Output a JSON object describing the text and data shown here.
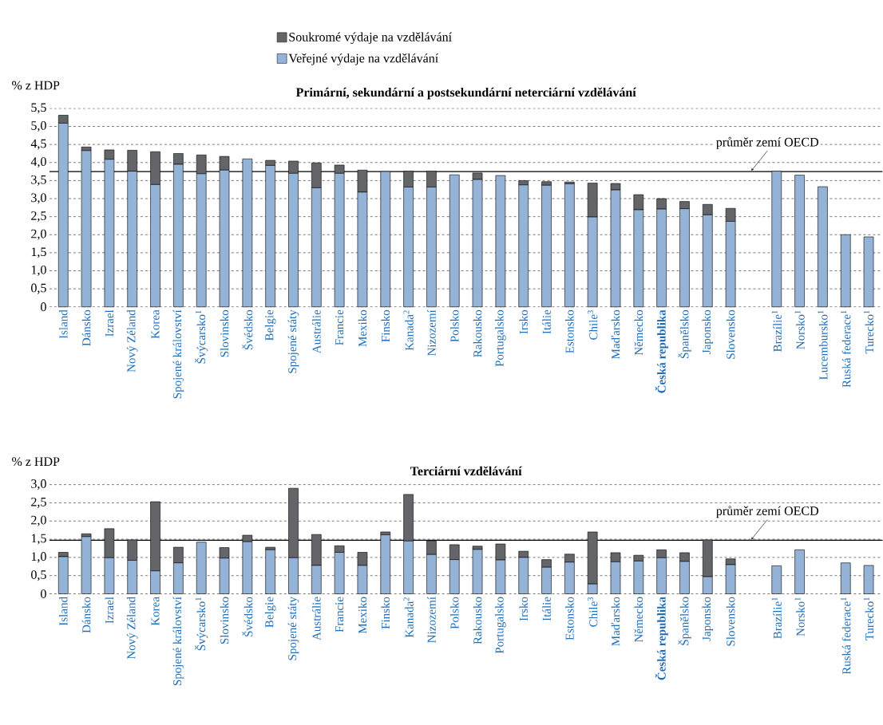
{
  "chart_data": [
    {
      "type": "bar",
      "stacked": true,
      "title": "Primární, sekundární a postsekundární neterciární vzdělávání",
      "ylabel": "% z HDP",
      "legend": "top",
      "grid": "y",
      "categories": [
        "Island",
        "Dánsko",
        "Izrael",
        "Nový Zéland",
        "Korea",
        "Spojené království",
        "Švýcarsko$^{1}$",
        "Slovinsko",
        "Švédsko",
        "Belgie",
        "Spojené státy",
        "Austrálie",
        "Francie",
        "Mexiko",
        "Finsko",
        "Kanada$^{2}$",
        "Nizozemí",
        "Polsko",
        "Rakousko",
        "Portugalsko",
        "Irsko",
        "Itálie",
        "Estonsko",
        "Chile$^{3}$",
        "Maďarsko",
        "Německo",
        "**Česká republika**",
        "Španělsko",
        "Japonsko",
        "Slovensko",
        null,
        "Brazílie$^{1}$",
        "Norsko$^{1}$",
        "Lucembursko$^{1}$",
        "Ruská federace$^{1}$",
        "Turecko$^{1}$"
      ],
      "series": [
        {
          "name": "Veřejné výdaje na vzdělávání",
          "color": "#95b3d7",
          "values": [
            5.09,
            4.33,
            4.09,
            3.76,
            3.39,
            3.95,
            3.69,
            3.79,
            4.1,
            3.92,
            3.7,
            3.3,
            3.7,
            3.18,
            3.75,
            3.32,
            3.32,
            3.66,
            3.53,
            3.64,
            3.38,
            3.37,
            3.41,
            2.49,
            3.24,
            2.69,
            2.71,
            2.72,
            2.55,
            2.37,
            null,
            3.76,
            3.65,
            3.33,
            2.0,
            1.94
          ]
        },
        {
          "name": "Soukromé výdaje na vzdělávání",
          "color": "#646569",
          "values": [
            0.22,
            0.1,
            0.26,
            0.58,
            0.91,
            0.3,
            0.52,
            0.38,
            0,
            0.14,
            0.34,
            0.69,
            0.23,
            0.61,
            0,
            0.44,
            0.44,
            0,
            0.18,
            0,
            0.12,
            0.1,
            0.05,
            0.94,
            0.18,
            0.42,
            0.29,
            0.2,
            0.29,
            0.36,
            null,
            0,
            0,
            0,
            0,
            0
          ]
        }
      ],
      "ylim": [
        0,
        5.5
      ],
      "yticks": [
        0,
        {
          "value": 0.5,
          "label": "0,5"
        },
        {
          "value": 1,
          "label": "1,0"
        },
        {
          "value": 1.5,
          "label": "1,5"
        },
        {
          "value": 2,
          "label": "2,0"
        },
        {
          "value": 2.5,
          "label": "2,5"
        },
        {
          "value": 3,
          "label": "3,0"
        },
        {
          "value": 3.5,
          "label": "3,5"
        },
        {
          "value": 4,
          "label": "4,0"
        },
        {
          "value": 4.5,
          "label": "4,5"
        },
        {
          "value": 5,
          "label": "5,0"
        },
        {
          "value": 5.5,
          "label": "5,5"
        }
      ],
      "ref_lines": [
        {
          "axis": "y",
          "value": 3.75,
          "label": "průměr zemí OECD"
        }
      ]
    },
    {
      "type": "bar",
      "stacked": true,
      "title": "Terciární vzdělávání",
      "ylabel": "% z HDP",
      "grid": "y",
      "categories": [
        "Island",
        "Dánsko",
        "Izrael",
        "Nový Zéland",
        "Korea",
        "Spojené království",
        "Švýcarsko$^{1}$",
        "Slovinsko",
        "Švédsko",
        "Belgie",
        "Spojené státy",
        "Austrálie",
        "Francie",
        "Mexiko",
        "Finsko",
        "Kanada$^{2}$",
        "Nizozemí",
        "Polsko",
        "Rakousko",
        "Portugalsko",
        "Irsko",
        "Itálie",
        "Estonsko",
        "Chile$^{3}$",
        "Maďarsko",
        "Německo",
        "**Česká republika**",
        "Španělsko",
        "Japonsko",
        "Slovensko",
        null,
        "Brazílie$^{1}$",
        "Norsko$^{1}$",
        null,
        "Ruská federace$^{1}$",
        "Turecko$^{1}$"
      ],
      "series": [
        {
          "color": "#95b3d7",
          "values": [
            1.02,
            1.57,
            0.99,
            0.92,
            0.63,
            0.85,
            1.42,
            0.98,
            1.43,
            1.21,
            0.99,
            0.78,
            1.14,
            0.78,
            1.62,
            1.45,
            1.08,
            0.94,
            1.22,
            0.93,
            1.0,
            0.73,
            0.87,
            0.27,
            0.88,
            0.9,
            0.99,
            0.89,
            0.47,
            0.8,
            null,
            0.77,
            1.21,
            null,
            0.85,
            0.78
          ]
        },
        {
          "color": "#646569",
          "values": [
            0.12,
            0.08,
            0.8,
            0.56,
            1.9,
            0.43,
            0,
            0.29,
            0.18,
            0.07,
            1.91,
            0.85,
            0.18,
            0.36,
            0.08,
            1.28,
            0.38,
            0.41,
            0.09,
            0.44,
            0.17,
            0.21,
            0.22,
            1.43,
            0.25,
            0.16,
            0.22,
            0.24,
            1.01,
            0.16,
            null,
            0,
            0,
            null,
            0,
            0
          ]
        }
      ],
      "ylim": [
        0,
        3
      ],
      "yticks": [
        0,
        {
          "value": 0.5,
          "label": "0,5"
        },
        {
          "value": 1,
          "label": "1,0"
        },
        {
          "value": 1.5,
          "label": "1,5"
        },
        {
          "value": 2,
          "label": "2,0"
        },
        {
          "value": 2.5,
          "label": "2,5"
        },
        {
          "value": 3,
          "label": "3,0"
        }
      ],
      "ref_lines": [
        {
          "axis": "y",
          "value": 1.47,
          "label": "průměr zemí OECD"
        }
      ]
    }
  ]
}
